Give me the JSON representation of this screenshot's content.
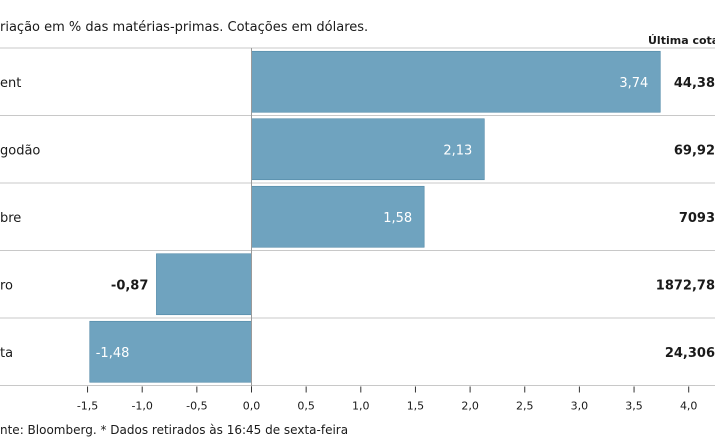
{
  "chart_data": {
    "type": "bar",
    "orientation": "horizontal",
    "subtitle": "riação em % das matérias-primas. Cotações em dólares.",
    "column_header": "Última cotaç",
    "categories": [
      "ent",
      "godão",
      "bre",
      "ro",
      "ta"
    ],
    "values": [
      3.74,
      2.13,
      1.58,
      -0.87,
      -1.48
    ],
    "value_labels": [
      "3,74",
      "2,13",
      "1,58",
      "-0,87",
      "-1,48"
    ],
    "quotes": [
      "44,38",
      "69,92",
      "7093",
      "1872,78",
      "24,306"
    ],
    "xlim": [
      -1.5,
      4.0
    ],
    "ticks": [
      -1.5,
      -1.0,
      -0.5,
      0.0,
      0.5,
      1.0,
      1.5,
      2.0,
      2.5,
      3.0,
      3.5,
      4.0
    ],
    "tick_labels": [
      "-1,5",
      "-1,0",
      "-0,5",
      "0,0",
      "0,5",
      "1,0",
      "1,5",
      "2,0",
      "2,5",
      "3,0",
      "3,5",
      "4,0"
    ],
    "bar_color": "#6fa3bf",
    "source": "nte: Bloomberg.  * Dados retirados às 16:45 de sexta-feira"
  }
}
